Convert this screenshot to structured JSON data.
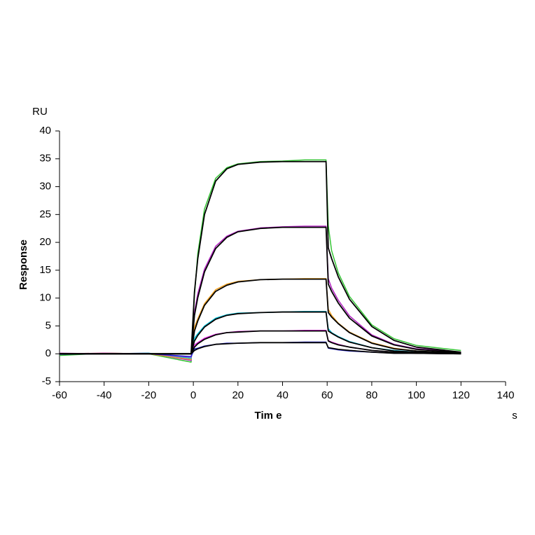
{
  "chart_data": {
    "type": "line",
    "y_label": "Response",
    "y_unit": "RU",
    "x_label": "Tim e",
    "x_unit": "s",
    "x": [
      -60,
      -40,
      -20,
      -1,
      0.5,
      2,
      5,
      10,
      15,
      20,
      30,
      40,
      50,
      59.5,
      60.5,
      62,
      65,
      70,
      80,
      90,
      100,
      120
    ],
    "series": [
      {
        "color": "#33c433",
        "values": [
          -0.3,
          0.1,
          0,
          -1.5,
          10.5,
          18.0,
          26.0,
          31.5,
          33.4,
          34.1,
          34.5,
          34.6,
          34.8,
          34.8,
          23.0,
          18.5,
          14.5,
          10.3,
          5.2,
          2.7,
          1.5,
          0.6
        ]
      },
      {
        "color": "#b020c0",
        "values": [
          0.1,
          0,
          0.1,
          -1.2,
          7.5,
          10.8,
          15.2,
          19.3,
          21.1,
          22.0,
          22.6,
          22.8,
          22.9,
          22.9,
          13.5,
          11.8,
          9.6,
          6.8,
          3.4,
          1.7,
          0.9,
          0.3
        ]
      },
      {
        "color": "#f0a020",
        "values": [
          0,
          0.1,
          0,
          -1.0,
          4.8,
          6.3,
          9.0,
          11.5,
          12.5,
          13.0,
          13.3,
          13.4,
          13.5,
          13.5,
          8.0,
          6.9,
          5.5,
          3.9,
          2.0,
          1.0,
          0.5,
          0.1
        ]
      },
      {
        "color": "#00c0d8",
        "values": [
          0,
          0,
          0.1,
          -0.8,
          2.8,
          3.6,
          5.0,
          6.4,
          7.0,
          7.3,
          7.4,
          7.5,
          7.6,
          7.6,
          4.5,
          3.8,
          3.1,
          2.2,
          1.1,
          0.6,
          0.3,
          0.1
        ]
      },
      {
        "color": "#e020e0",
        "values": [
          0,
          0.1,
          0,
          -0.6,
          1.6,
          2.0,
          2.8,
          3.5,
          3.8,
          4.0,
          4.1,
          4.1,
          4.2,
          4.2,
          2.4,
          2.1,
          1.7,
          1.2,
          0.6,
          0.3,
          0.1,
          0
        ]
      },
      {
        "color": "#2020d0",
        "values": [
          -0.1,
          0,
          0,
          -0.5,
          0.9,
          1.0,
          1.4,
          1.7,
          1.9,
          1.9,
          2.0,
          2.0,
          2.1,
          2.1,
          1.0,
          0.9,
          0.7,
          0.5,
          0.3,
          0.1,
          0.1,
          0
        ]
      },
      {
        "color": "#000000",
        "values": [
          0,
          0,
          0,
          0,
          11.1,
          17.1,
          25.0,
          31.0,
          33.2,
          34.0,
          34.4,
          34.5,
          34.5,
          34.5,
          19.0,
          17.1,
          13.8,
          9.8,
          4.9,
          2.4,
          1.2,
          0.3
        ]
      },
      {
        "color": "#000000",
        "values": [
          0,
          0,
          0,
          0,
          6.9,
          10.1,
          14.7,
          18.9,
          20.9,
          21.9,
          22.5,
          22.7,
          22.7,
          22.7,
          12.5,
          11.2,
          9.1,
          6.4,
          3.2,
          1.6,
          0.8,
          0.2
        ]
      },
      {
        "color": "#000000",
        "values": [
          0,
          0,
          0,
          0,
          4.1,
          5.9,
          8.7,
          11.2,
          12.3,
          12.9,
          13.3,
          13.4,
          13.4,
          13.4,
          7.4,
          6.6,
          5.4,
          3.8,
          1.9,
          0.9,
          0.5,
          0.1
        ]
      },
      {
        "color": "#000000",
        "values": [
          0,
          0,
          0,
          0,
          2.3,
          3.3,
          4.8,
          6.2,
          6.9,
          7.2,
          7.4,
          7.5,
          7.5,
          7.5,
          4.1,
          3.7,
          3.0,
          2.1,
          1.1,
          0.5,
          0.3,
          0.1
        ]
      },
      {
        "color": "#000000",
        "values": [
          0,
          0,
          0,
          0,
          1.2,
          1.8,
          2.6,
          3.4,
          3.8,
          3.9,
          4.1,
          4.1,
          4.1,
          4.1,
          2.3,
          2.0,
          1.6,
          1.2,
          0.6,
          0.3,
          0.1,
          0
        ]
      },
      {
        "color": "#000000",
        "values": [
          0,
          0,
          0,
          0,
          0.6,
          0.9,
          1.3,
          1.7,
          1.8,
          1.9,
          2.0,
          2.0,
          2.0,
          2.0,
          1.1,
          1.0,
          0.8,
          0.6,
          0.3,
          0.1,
          0.1,
          0
        ]
      }
    ],
    "xlim": [
      -60,
      140
    ],
    "xticks": [
      -60,
      -40,
      -20,
      0,
      20,
      40,
      60,
      80,
      100,
      120,
      140
    ],
    "ylim": [
      -5,
      40
    ],
    "yticks": [
      -5,
      0,
      5,
      10,
      15,
      20,
      25,
      30,
      35,
      40
    ],
    "grid": false
  }
}
